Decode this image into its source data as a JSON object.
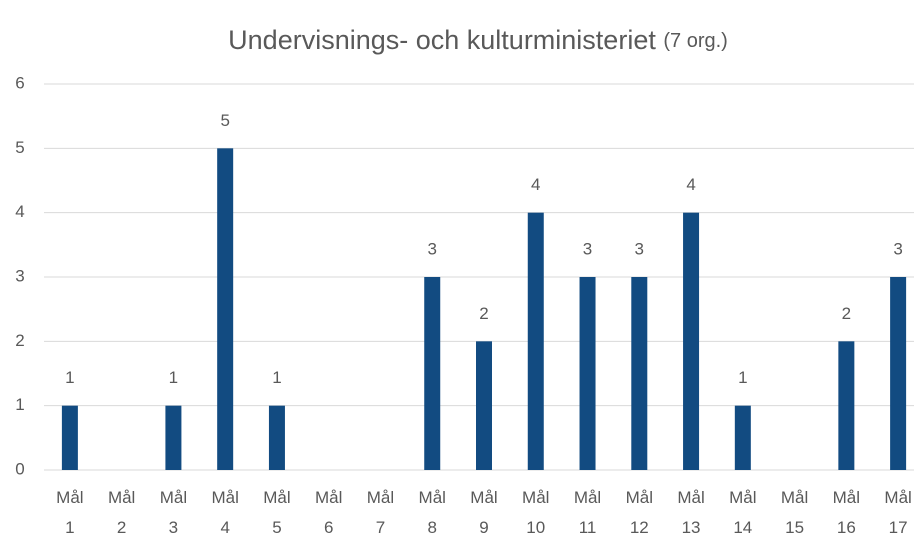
{
  "chart_data": {
    "type": "bar",
    "title": "Undervisnings- och kulturministeriet",
    "title_note": "(7 org.)",
    "categories": [
      "Mål 1",
      "Mål 2",
      "Mål 3",
      "Mål 4",
      "Mål 5",
      "Mål 6",
      "Mål 7",
      "Mål 8",
      "Mål 9",
      "Mål 10",
      "Mål 11",
      "Mål 12",
      "Mål 13",
      "Mål 14",
      "Mål 15",
      "Mål 16",
      "Mål 17"
    ],
    "values": [
      1,
      0,
      1,
      5,
      1,
      0,
      0,
      3,
      2,
      4,
      3,
      3,
      4,
      1,
      0,
      2,
      3
    ],
    "color": "#124b81",
    "ylim": [
      0,
      6
    ],
    "yticks": [
      0,
      1,
      2,
      3,
      4,
      5,
      6
    ],
    "grid": true
  }
}
